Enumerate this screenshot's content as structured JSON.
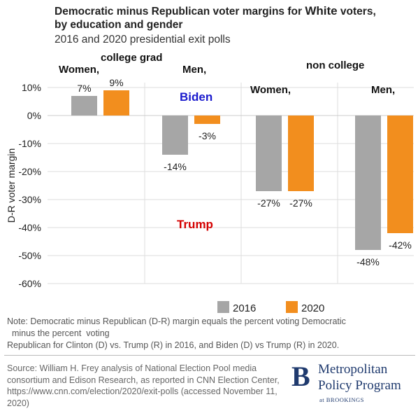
{
  "header": {
    "title_part1": "Democratic minus Republican voter margins for",
    "title_white": "White",
    "title_part2": "voters,",
    "title_line2": "by education and gender",
    "subtitle": "2016 and 2020 presidential exit polls"
  },
  "groups": {
    "college_grad": "college grad",
    "non_college": "non college",
    "women_1": "Women,",
    "men_1": "Men,",
    "women_2": "Women,",
    "men_2": "Men,"
  },
  "annotations": {
    "biden": "Biden",
    "trump": "Trump"
  },
  "colors": {
    "s2016": "#a6a6a6",
    "s2020": "#f28e1e",
    "biden": "#1a1acd",
    "trump": "#d40000",
    "grid": "#dddddd"
  },
  "chart_data": {
    "type": "bar",
    "categories": [
      "Women, college grad",
      "Men, college grad",
      "Women, non college",
      "Men, non college"
    ],
    "series": [
      {
        "name": "2016",
        "values": [
          7,
          -14,
          -27,
          -48
        ],
        "labels": [
          "7%",
          "-14%",
          "-27%",
          "-48%"
        ]
      },
      {
        "name": "2020",
        "values": [
          9,
          -3,
          -27,
          -42
        ],
        "labels": [
          "9%",
          "-3%",
          "-27%",
          "-42%"
        ]
      }
    ],
    "ylabel": "D-R voter margin",
    "ylim": [
      -60,
      10
    ],
    "yticks": [
      10,
      0,
      -10,
      -20,
      -30,
      -40,
      -50,
      -60
    ],
    "ytick_labels": [
      "10%",
      "0%",
      "-10%",
      "-20%",
      "-30%",
      "-40%",
      "-50%",
      "-60%"
    ],
    "grid": true,
    "legend": "bottom-right"
  },
  "note": {
    "line1": "Note: Democratic minus Republican (D-R) margin equals the percent voting Democratic",
    "line2": "  minus the percent  voting",
    "line3": "Republican for Clinton (D) vs. Trump (R) in 2016, and Biden (D) vs Trump (R) in 2020."
  },
  "source": "Source: William H. Frey analysis of National Election Pool media consortium and Edison Research, as reported in CNN Election Center, https://www.cnn.com/election/2020/exit-polls (accessed November 11, 2020)",
  "logo": {
    "letter": "B",
    "line1": "Metropolitan",
    "line2": "Policy Program",
    "line3": "at BROOKINGS"
  }
}
